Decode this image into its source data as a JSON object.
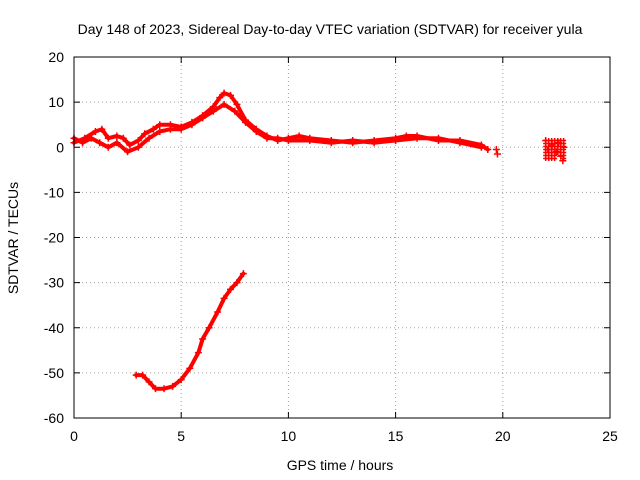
{
  "chart_data": {
    "type": "scatter",
    "title": "Day 148 of 2023, Sidereal Day-to-day VTEC variation (SDTVAR) for receiver yula",
    "xlabel": "GPS time / hours",
    "ylabel": "SDTVAR / TECUs",
    "xlim": [
      0,
      25
    ],
    "ylim": [
      -60,
      20
    ],
    "xticks": [
      0,
      5,
      10,
      15,
      20,
      25
    ],
    "yticks": [
      -60,
      -50,
      -40,
      -30,
      -20,
      -10,
      0,
      10,
      20
    ],
    "xtick_labels": [
      "0",
      "5",
      "10",
      "15",
      "20",
      "25"
    ],
    "ytick_labels": [
      "-60",
      "-50",
      "-40",
      "-30",
      "-20",
      "-10",
      "0",
      "10",
      "20"
    ],
    "grid": true,
    "marker": "+",
    "color": "#ff0000",
    "series": [
      {
        "name": "upper-trace-a",
        "points": [
          [
            0,
            1.0
          ],
          [
            0.5,
            2.0
          ],
          [
            1.0,
            3.5
          ],
          [
            1.3,
            4.0
          ],
          [
            1.6,
            2.0
          ],
          [
            2.0,
            2.5
          ],
          [
            2.3,
            2.0
          ],
          [
            2.6,
            0.5
          ],
          [
            3.0,
            1.5
          ],
          [
            3.3,
            3.0
          ],
          [
            3.7,
            4.0
          ],
          [
            4.0,
            5.0
          ],
          [
            4.5,
            5.0
          ],
          [
            5.0,
            4.5
          ],
          [
            5.5,
            5.5
          ],
          [
            6.0,
            7.0
          ],
          [
            6.5,
            9.0
          ],
          [
            6.8,
            11.0
          ],
          [
            7.0,
            12.0
          ],
          [
            7.3,
            11.5
          ],
          [
            7.6,
            9.5
          ],
          [
            8.0,
            6.0
          ],
          [
            8.5,
            4.0
          ],
          [
            9.0,
            2.5
          ],
          [
            9.5,
            1.5
          ],
          [
            10.0,
            2.0
          ],
          [
            10.5,
            2.5
          ],
          [
            11.0,
            2.0
          ],
          [
            12.0,
            1.5
          ],
          [
            13.0,
            1.0
          ],
          [
            14.0,
            1.5
          ],
          [
            15.0,
            2.0
          ],
          [
            15.5,
            2.5
          ],
          [
            16.0,
            2.5
          ],
          [
            17.0,
            1.5
          ],
          [
            18.0,
            1.5
          ],
          [
            19.0,
            0.5
          ],
          [
            19.3,
            -0.5
          ]
        ]
      },
      {
        "name": "upper-trace-b",
        "points": [
          [
            0,
            2.0
          ],
          [
            0.4,
            1.0
          ],
          [
            0.8,
            2.0
          ],
          [
            1.2,
            1.0
          ],
          [
            1.6,
            0.0
          ],
          [
            2.0,
            1.0
          ],
          [
            2.5,
            -1.0
          ],
          [
            3.0,
            0.0
          ],
          [
            3.5,
            2.0
          ],
          [
            4.0,
            3.5
          ],
          [
            4.5,
            4.0
          ],
          [
            5.0,
            4.0
          ],
          [
            5.5,
            5.0
          ],
          [
            6.0,
            6.5
          ],
          [
            6.5,
            8.0
          ],
          [
            7.0,
            9.5
          ],
          [
            7.5,
            8.0
          ],
          [
            8.0,
            5.5
          ],
          [
            8.5,
            3.5
          ],
          [
            9.0,
            2.0
          ],
          [
            9.5,
            2.0
          ],
          [
            10.0,
            1.5
          ],
          [
            11.0,
            1.5
          ],
          [
            12.0,
            1.0
          ],
          [
            13.0,
            1.5
          ],
          [
            14.0,
            1.0
          ],
          [
            15.0,
            1.5
          ],
          [
            16.0,
            2.0
          ],
          [
            17.0,
            2.0
          ],
          [
            18.0,
            1.0
          ],
          [
            19.0,
            0.0
          ]
        ]
      },
      {
        "name": "isolated-points",
        "points": [
          [
            19.7,
            -0.5
          ],
          [
            19.75,
            -1.5
          ]
        ]
      },
      {
        "name": "late-cluster",
        "points": [
          [
            22.0,
            1.5
          ],
          [
            22.1,
            -0.5
          ],
          [
            22.3,
            0.5
          ],
          [
            22.5,
            -1.0
          ],
          [
            22.6,
            1.0
          ],
          [
            22.7,
            -2.0
          ],
          [
            22.8,
            -3.0
          ],
          [
            22.85,
            0.0
          ]
        ]
      },
      {
        "name": "lower-trace",
        "points": [
          [
            2.9,
            -50.5
          ],
          [
            3.2,
            -50.5
          ],
          [
            3.5,
            -52.0
          ],
          [
            3.8,
            -53.5
          ],
          [
            4.2,
            -53.5
          ],
          [
            4.6,
            -53.0
          ],
          [
            5.0,
            -51.5
          ],
          [
            5.4,
            -49.0
          ],
          [
            5.8,
            -45.5
          ],
          [
            6.0,
            -42.5
          ],
          [
            6.3,
            -40.0
          ],
          [
            6.7,
            -36.5
          ],
          [
            7.0,
            -33.5
          ],
          [
            7.3,
            -31.5
          ],
          [
            7.6,
            -30.0
          ],
          [
            7.9,
            -28.0
          ]
        ]
      }
    ]
  }
}
